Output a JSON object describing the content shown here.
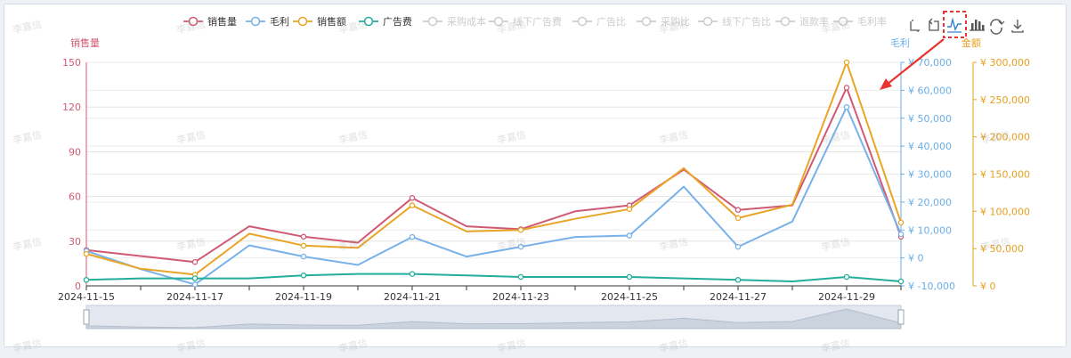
{
  "watermark_text": "李嘉信",
  "toolbar": {
    "icons": [
      "zoom-icon",
      "zoom-reset-icon",
      "line-chart-icon",
      "bar-chart-icon",
      "restore-icon",
      "download-icon"
    ],
    "highlighted": "line-chart-icon",
    "highlight_color": "#e8332e"
  },
  "chart_data": {
    "type": "line",
    "dates": [
      "2024-11-15",
      "2024-11-16",
      "2024-11-17",
      "2024-11-18",
      "2024-11-19",
      "2024-11-20",
      "2024-11-21",
      "2024-11-22",
      "2024-11-23",
      "2024-11-24",
      "2024-11-25",
      "2024-11-26",
      "2024-11-27",
      "2024-11-28",
      "2024-11-29",
      "2024-11-30"
    ],
    "x_tick_labels": [
      "2024-11-15",
      "2024-11-17",
      "2024-11-19",
      "2024-11-21",
      "2024-11-23",
      "2024-11-25",
      "2024-11-27",
      "2024-11-29"
    ],
    "axes": {
      "left": {
        "name": "销售量",
        "min": 0,
        "max": 150,
        "ticks": [
          "0",
          "30",
          "60",
          "90",
          "120",
          "150"
        ],
        "color": "#d05a73"
      },
      "right1": {
        "name": "毛利",
        "min": -10000,
        "max": 70000,
        "ticks": [
          "¥ -10,000",
          "¥ 0",
          "¥ 10,000",
          "¥ 20,000",
          "¥ 30,000",
          "¥ 40,000",
          "¥ 50,000",
          "¥ 60,000",
          "¥ 70,000"
        ],
        "color": "#6aaee8"
      },
      "right2": {
        "name": "金额",
        "min": 0,
        "max": 300000,
        "ticks": [
          "¥ 0",
          "¥ 50,000",
          "¥ 100,000",
          "¥ 150,000",
          "¥ 200,000",
          "¥ 250,000",
          "¥ 300,000"
        ],
        "color": "#e6a020"
      }
    },
    "series": [
      {
        "name": "销售量",
        "axis": "left",
        "color": "#d05a73",
        "values": [
          24,
          20,
          16,
          40,
          33,
          29,
          59,
          40,
          38,
          50,
          54,
          78,
          51,
          54,
          133,
          33
        ]
      },
      {
        "name": "毛利",
        "axis": "right1",
        "color": "#79b1ea",
        "values": [
          2500,
          -4000,
          -9500,
          4500,
          500,
          -2500,
          7500,
          500,
          4000,
          7500,
          8000,
          25500,
          4000,
          13000,
          54000,
          8500
        ]
      },
      {
        "name": "销售额",
        "axis": "right2",
        "color": "#e9a526",
        "values": [
          43000,
          23000,
          15000,
          70000,
          54000,
          51000,
          108000,
          73000,
          75000,
          90000,
          103000,
          158000,
          91000,
          109000,
          300000,
          85000
        ]
      },
      {
        "name": "广告费",
        "axis": "left",
        "color": "#23ad9c",
        "values": [
          4,
          5,
          5,
          5,
          7,
          8,
          8,
          7,
          6,
          6,
          6,
          5,
          4,
          3,
          6,
          3
        ]
      }
    ],
    "legend": [
      {
        "name": "销售量",
        "active": true
      },
      {
        "name": "毛利",
        "active": true
      },
      {
        "name": "销售额",
        "active": true
      },
      {
        "name": "广告费",
        "active": true
      },
      {
        "name": "采购成本",
        "active": false
      },
      {
        "name": "线下广告费",
        "active": false
      },
      {
        "name": "广告比",
        "active": false
      },
      {
        "name": "采购比",
        "active": false
      },
      {
        "name": "线下广告比",
        "active": false
      },
      {
        "name": "退款率",
        "active": false
      },
      {
        "name": "毛利率",
        "active": false
      }
    ],
    "legend_position": "top-center",
    "grid": true
  }
}
